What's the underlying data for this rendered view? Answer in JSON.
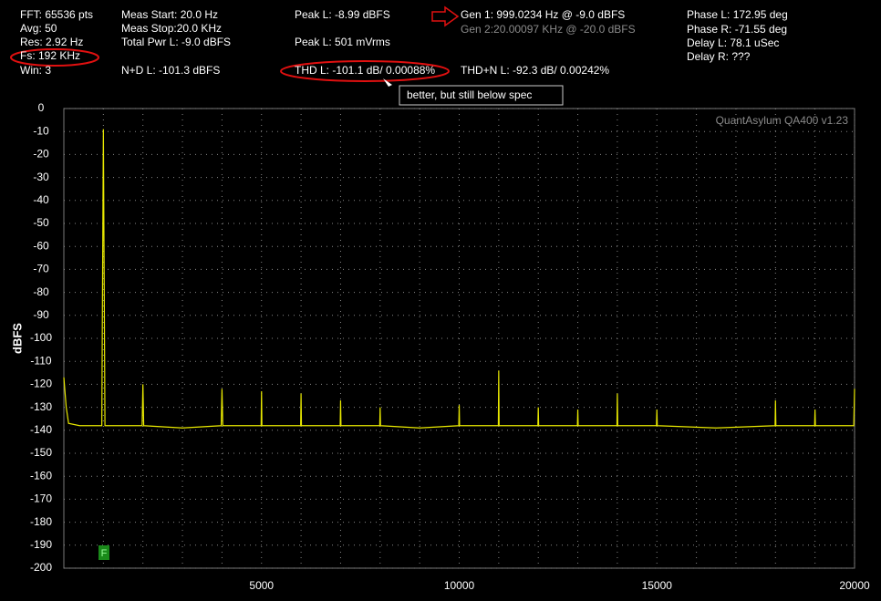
{
  "header": {
    "col1": [
      "FFT: 65536 pts",
      "Avg: 50",
      "Res: 2.92 Hz",
      "Fs: 192 KHz",
      "Win: 3"
    ],
    "col2": [
      "Meas Start: 20.0 Hz",
      "Meas Stop:20.0 KHz",
      "Total Pwr L: -9.0 dBFS",
      "N+D L: -101.3 dBFS"
    ],
    "col3": [
      "Peak L: -8.99 dBFS",
      "Peak L: 501 mVrms",
      "THD L: -101.1 dB/ 0.00088%"
    ],
    "thdn": "THD+N L: -92.3 dB/ 0.00242%",
    "gen1": "Gen 1: 999.0234 Hz @ -9.0  dBFS",
    "gen2": "Gen 2:20.00097 KHz @ -20.0  dBFS",
    "col5": [
      "Phase L: 172.95 deg",
      "Phase R: -71.55 deg",
      "Delay L: 78.1 uSec",
      "Delay R: ???"
    ],
    "callout": "better, but still below spec"
  },
  "chart_data": {
    "type": "line",
    "watermark": "QuantAsylum QA400 v1.23",
    "ylabel": "dBFS",
    "marker": "F",
    "xlim": [
      0,
      20000
    ],
    "ylim": [
      -200,
      0
    ],
    "xticks": [
      5000,
      10000,
      15000,
      20000
    ],
    "yticks": [
      0,
      -10,
      -20,
      -30,
      -40,
      -50,
      -60,
      -70,
      -80,
      -90,
      -100,
      -110,
      -120,
      -130,
      -140,
      -150,
      -160,
      -170,
      -180,
      -190,
      -200
    ],
    "grid": true,
    "series": [
      {
        "name": "L",
        "color": "#e8e800",
        "x": [
          0,
          60,
          120,
          400,
          700,
          960,
          1000,
          1040,
          1500,
          1980,
          2000,
          2020,
          3000,
          3980,
          4000,
          4020,
          4990,
          5000,
          5010,
          5500,
          5990,
          6000,
          6010,
          6990,
          7000,
          7010,
          7990,
          8000,
          8010,
          9000,
          9990,
          10000,
          10010,
          10990,
          11000,
          11010,
          11990,
          12000,
          12010,
          12990,
          13000,
          13010,
          13990,
          14000,
          14010,
          14990,
          15000,
          15010,
          16500,
          17990,
          18000,
          18010,
          18990,
          19000,
          19010,
          19980,
          20000
        ],
        "values": [
          -117,
          -130,
          -137,
          -138,
          -138,
          -138,
          -9,
          -138,
          -138,
          -138,
          -120,
          -138,
          -139,
          -138,
          -122,
          -138,
          -138,
          -123,
          -138,
          -138,
          -138,
          -124,
          -138,
          -138,
          -127,
          -138,
          -138,
          -130,
          -138,
          -139,
          -138,
          -129,
          -138,
          -138,
          -114,
          -138,
          -138,
          -130,
          -138,
          -138,
          -131,
          -138,
          -138,
          -124,
          -138,
          -138,
          -131,
          -138,
          -139,
          -138,
          -127,
          -138,
          -138,
          -131,
          -138,
          -138,
          -122
        ]
      }
    ]
  }
}
